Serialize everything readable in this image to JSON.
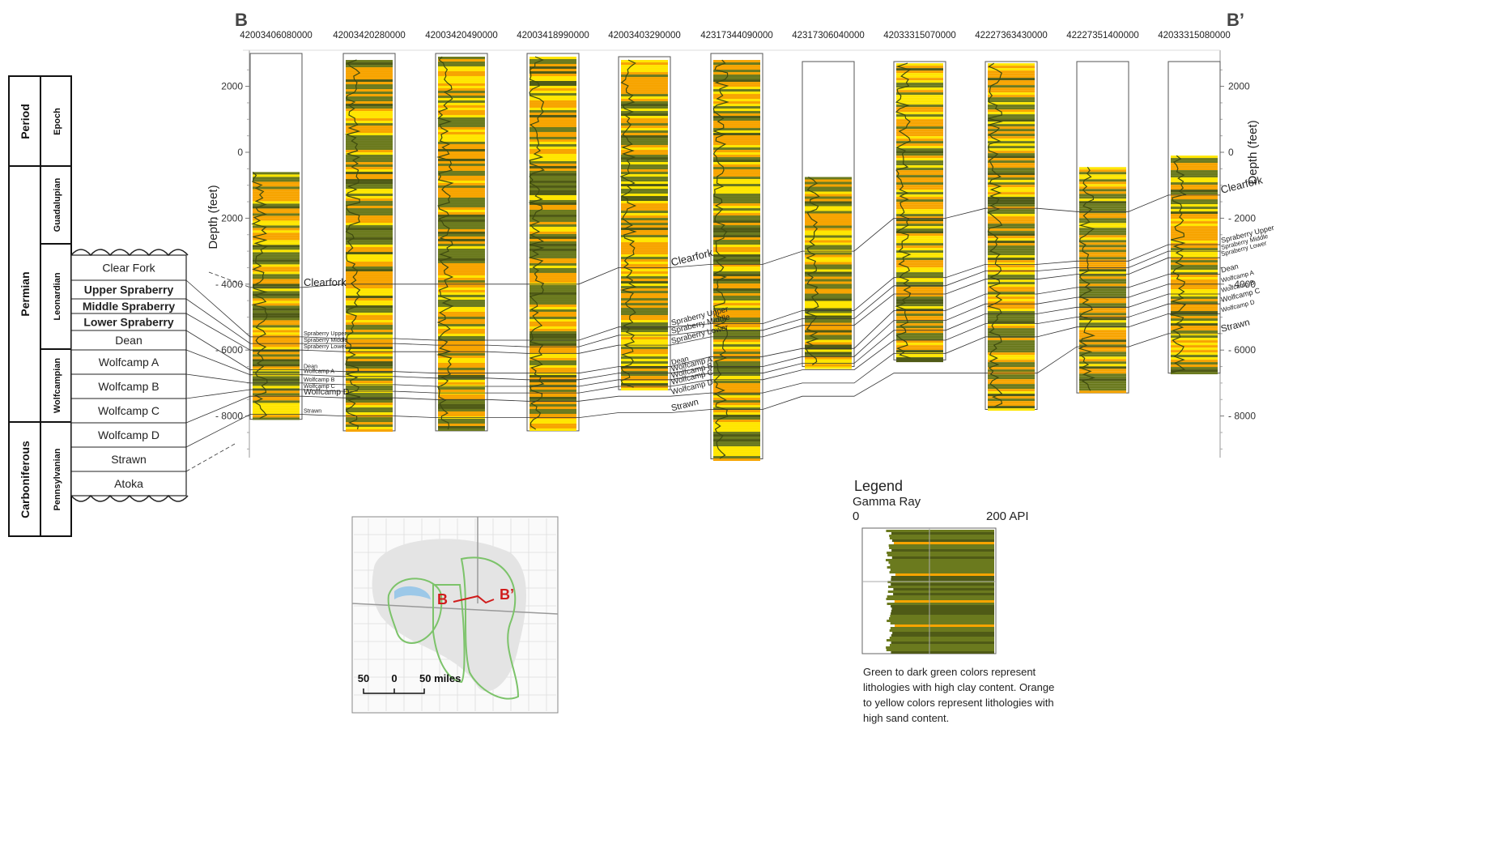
{
  "section": {
    "start_label": "B",
    "end_label": "B’"
  },
  "wells": [
    {
      "api": "42003406080000",
      "top_ft": 600,
      "bottom_ft": 8100
    },
    {
      "api": "42003420280000",
      "top_ft": -2800,
      "bottom_ft": 8450
    },
    {
      "api": "42003420490000",
      "top_ft": -2900,
      "bottom_ft": 8450
    },
    {
      "api": "42003418990000",
      "top_ft": -2900,
      "bottom_ft": 8450
    },
    {
      "api": "42003403290000",
      "top_ft": -2800,
      "bottom_ft": 7200
    },
    {
      "api": "42317344090000",
      "top_ft": -2800,
      "bottom_ft": 9300
    },
    {
      "api": "42317306040000",
      "top_ft": 750,
      "bottom_ft": 6500
    },
    {
      "api": "42033315070000",
      "top_ft": -2700,
      "bottom_ft": 6300
    },
    {
      "api": "42227363430000",
      "top_ft": -2700,
      "bottom_ft": 7800
    },
    {
      "api": "42227351400000",
      "top_ft": 450,
      "bottom_ft": 7300
    },
    {
      "api": "42033315080000",
      "top_ft": 100,
      "bottom_ft": 6700
    }
  ],
  "depth_axis": {
    "title": "Depth (feet)",
    "ticks": [
      {
        "value": -2000,
        "label": "2000"
      },
      {
        "value": 0,
        "label": "0"
      },
      {
        "value": 2000,
        "label": "- 2000"
      },
      {
        "value": 4000,
        "label": "- 4000"
      },
      {
        "value": 6000,
        "label": "- 6000"
      },
      {
        "value": 8000,
        "label": "- 8000"
      }
    ]
  },
  "stratigraphy": {
    "period_header": "Period",
    "epoch_header": "Epoch",
    "periods": [
      "Permian",
      "Carboniferous"
    ],
    "epochs": [
      "Guadalupian",
      "Leonardian",
      "Wolfcampian",
      "Pennsylvanian"
    ],
    "formations": [
      "Clear Fork",
      "Upper Spraberry",
      "Middle Spraberry",
      "Lower Spraberry",
      "Dean",
      "Wolfcamp A",
      "Wolfcamp B",
      "Wolfcamp C",
      "Wolfcamp D",
      "Strawn",
      "Atoka"
    ]
  },
  "horizon_labels": {
    "clearfork": "Clearfork",
    "spraberry_upper": "Spraberry Upper",
    "spraberry_middle": "Spraberry Middle",
    "spraberry_lower": "Spraberry Lower",
    "dean": "Dean",
    "wolfcamp_a": "Wolfcamp A",
    "wolfcamp_b": "Wolfcamp B",
    "wolfcamp_c": "Wolfcamp C",
    "wolfcamp_d": "Wolfcamp D",
    "strawn": "Strawn"
  },
  "horizons": [
    {
      "key": "clearfork",
      "depths": [
        4100,
        4000,
        4000,
        4000,
        3500,
        3400,
        3000,
        2000,
        1700,
        1800,
        1300
      ]
    },
    {
      "key": "spraberry_upper",
      "depths": [
        5600,
        5650,
        5700,
        5700,
        5300,
        5200,
        4800,
        3800,
        3400,
        3300,
        2800
      ]
    },
    {
      "key": "spraberry_middle",
      "depths": [
        5800,
        5800,
        5850,
        5900,
        5550,
        5400,
        5050,
        4050,
        3600,
        3500,
        3000
      ]
    },
    {
      "key": "spraberry_lower",
      "depths": [
        6000,
        6050,
        6050,
        6100,
        5850,
        5600,
        5250,
        4300,
        3850,
        3700,
        3200
      ]
    },
    {
      "key": "dean",
      "depths": [
        6600,
        6650,
        6700,
        6700,
        6500,
        6200,
        5950,
        4800,
        4300,
        4100,
        3700
      ]
    },
    {
      "key": "wolfcamp_a",
      "depths": [
        6750,
        6800,
        6850,
        6900,
        6700,
        6500,
        6200,
        5100,
        4600,
        4400,
        4000
      ]
    },
    {
      "key": "wolfcamp_b",
      "depths": [
        7000,
        7050,
        7100,
        7100,
        6900,
        6700,
        6400,
        5400,
        4900,
        4700,
        4300
      ]
    },
    {
      "key": "wolfcamp_c",
      "depths": [
        7200,
        7250,
        7300,
        7300,
        7100,
        6900,
        6600,
        5700,
        5200,
        5000,
        4600
      ]
    },
    {
      "key": "wolfcamp_d",
      "depths": [
        7400,
        7450,
        7500,
        7550,
        7400,
        7300,
        7000,
        6100,
        5600,
        5300,
        4900
      ]
    },
    {
      "key": "strawn",
      "depths": [
        7950,
        8000,
        8050,
        8050,
        7900,
        7800,
        7400,
        6700,
        6700,
        5900,
        5500
      ]
    }
  ],
  "legend": {
    "title": "Legend",
    "curve": "Gamma Ray",
    "min_label": "0",
    "max_label": "200 API",
    "note": "Green to dark green colors represent lithologies with high clay content. Orange to yellow colors represent lithologies with high sand content."
  },
  "map": {
    "start_label": "B",
    "end_label": "B’",
    "scale_labels": [
      "50",
      "0",
      "50 miles"
    ]
  },
  "colors": {
    "clay": "#6b7a1e",
    "clay_dark": "#4f5a16",
    "sand": "#f7a400",
    "sand_light": "#ffe600",
    "section_line": "#d01c1c",
    "map_outline": "#7cc36a",
    "lake": "#9cc8e8"
  }
}
